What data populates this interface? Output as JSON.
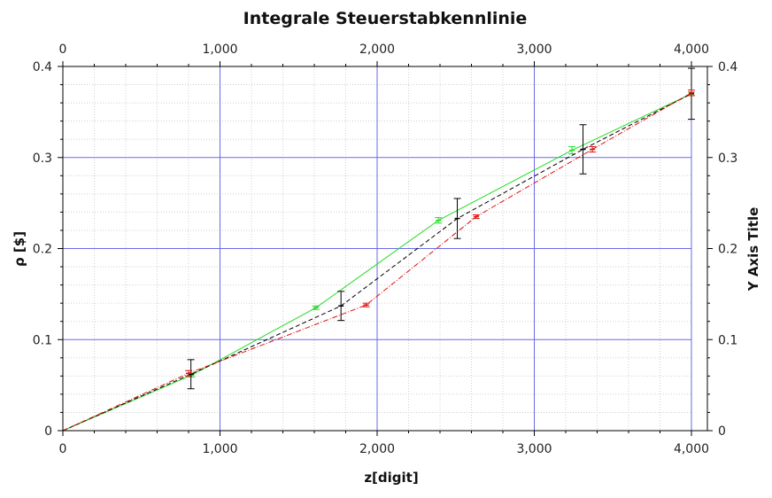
{
  "chart_data": {
    "type": "line",
    "title": "Integrale Steuerstabkennlinie",
    "xlabel": "z[digit]",
    "ylabel": "ρ [$]",
    "y2label": "Y Axis Title",
    "xlim": [
      0,
      4000
    ],
    "ylim": [
      0,
      0.4
    ],
    "x_ticks": [
      0,
      1000,
      2000,
      3000,
      4000
    ],
    "x_tick_labels": [
      "0",
      "1,000",
      "2,000",
      "3,000",
      "4,000"
    ],
    "y_ticks": [
      0,
      0.1,
      0.2,
      0.3,
      0.4
    ],
    "y_tick_labels": [
      "0",
      "0.1",
      "0.2",
      "0.3",
      "0.4"
    ],
    "grid": true,
    "series": [
      {
        "color": "#22dd22",
        "dash": "",
        "points": [
          {
            "x": 0,
            "y": 0,
            "err": 0
          },
          {
            "x": 820,
            "y": 0.061,
            "err": 0.002
          },
          {
            "x": 1610,
            "y": 0.135,
            "err": 0.002
          },
          {
            "x": 2390,
            "y": 0.231,
            "err": 0.003
          },
          {
            "x": 3240,
            "y": 0.308,
            "err": 0.004
          },
          {
            "x": 4000,
            "y": 0.37,
            "err": 0.002
          }
        ]
      },
      {
        "color": "#000000",
        "dash": "5,3",
        "points": [
          {
            "x": 0,
            "y": 0,
            "err": 0
          },
          {
            "x": 815,
            "y": 0.062,
            "err": 0.016
          },
          {
            "x": 1770,
            "y": 0.137,
            "err": 0.016
          },
          {
            "x": 2510,
            "y": 0.233,
            "err": 0.022
          },
          {
            "x": 3310,
            "y": 0.309,
            "err": 0.027
          },
          {
            "x": 4000,
            "y": 0.37,
            "err": 0.028
          }
        ]
      },
      {
        "color": "#dd1111",
        "dash": "6,2,1,2",
        "points": [
          {
            "x": 0,
            "y": 0,
            "err": 0
          },
          {
            "x": 800,
            "y": 0.063,
            "err": 0.003
          },
          {
            "x": 1930,
            "y": 0.138,
            "err": 0.002
          },
          {
            "x": 2630,
            "y": 0.235,
            "err": 0.002
          },
          {
            "x": 3370,
            "y": 0.309,
            "err": 0.003
          },
          {
            "x": 4000,
            "y": 0.371,
            "err": 0.003
          }
        ]
      }
    ]
  }
}
